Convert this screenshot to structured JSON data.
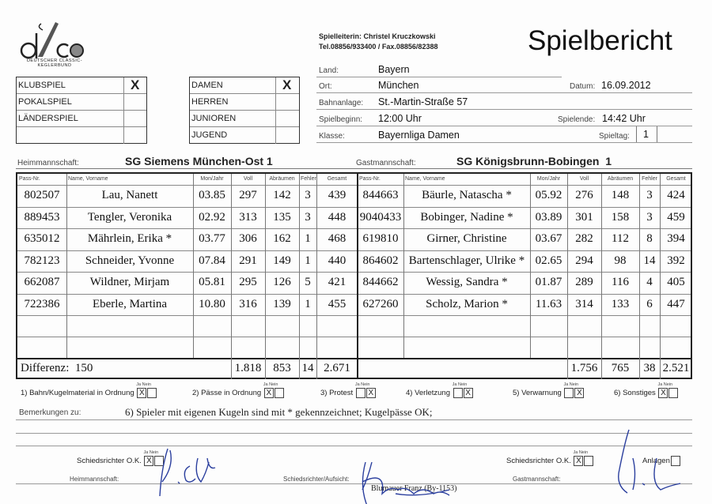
{
  "logo": {
    "text": "dkbc",
    "line1": "DEUTSCHER CLASSIC-KEGLERBUND"
  },
  "title": "Spielbericht",
  "contact": {
    "line1": "Spielleiterin:  Christel Kruczkowski",
    "line2": "Tel.08856/933400  /  Fax.08856/82388"
  },
  "game_type": [
    {
      "label": "KLUBSPIEL",
      "mark": "X"
    },
    {
      "label": "POKALSPIEL",
      "mark": ""
    },
    {
      "label": "LÄNDERSPIEL",
      "mark": ""
    },
    {
      "label": "",
      "mark": ""
    }
  ],
  "category": [
    {
      "label": "DAMEN",
      "mark": "X"
    },
    {
      "label": "HERREN",
      "mark": ""
    },
    {
      "label": "JUNIOREN",
      "mark": ""
    },
    {
      "label": "JUGEND",
      "mark": ""
    }
  ],
  "info": {
    "land_label": "Land:",
    "land": "Bayern",
    "ort_label": "Ort:",
    "ort": "München",
    "datum_label": "Datum:",
    "datum": "16.09.2012",
    "bahn_label": "Bahnanlage:",
    "bahn": "St.-Martin-Straße 57",
    "beginn_label": "Spielbeginn:",
    "beginn": "12:00 Uhr",
    "ende_label": "Spielende:",
    "ende": "14:42 Uhr",
    "klasse_label": "Klasse:",
    "klasse": "Bayernliga Damen",
    "spieltag_label": "Spieltag:",
    "spieltag": "1"
  },
  "teams": {
    "home_label": "Heimmannschaft:",
    "home": "SG Siemens München-Ost 1",
    "guest_label": "Gastmannschaft:",
    "guest": "SG Königsbrunn-Bobingen  1"
  },
  "columns": [
    "Pass-Nr.",
    "Name, Vorname",
    "Mon/Jahr",
    "Voll",
    "Abräumen",
    "Fehler",
    "Gesamt"
  ],
  "home_players": [
    [
      "802507",
      "Lau, Nanett",
      "03.85",
      "297",
      "142",
      "3",
      "439"
    ],
    [
      "889453",
      "Tengler, Veronika",
      "02.92",
      "313",
      "135",
      "3",
      "448"
    ],
    [
      "635012",
      "Mährlein, Erika *",
      "03.77",
      "306",
      "162",
      "1",
      "468"
    ],
    [
      "782123",
      "Schneider, Yvonne",
      "07.84",
      "291",
      "149",
      "1",
      "440"
    ],
    [
      "662087",
      "Wildner, Mirjam",
      "05.81",
      "295",
      "126",
      "5",
      "421"
    ],
    [
      "722386",
      "Eberle, Martina",
      "10.80",
      "316",
      "139",
      "1",
      "455"
    ]
  ],
  "guest_players": [
    [
      "844663",
      "Bäurle, Natascha *",
      "05.92",
      "276",
      "148",
      "3",
      "424"
    ],
    [
      "9040433",
      "Bobinger, Nadine *",
      "03.89",
      "301",
      "158",
      "3",
      "459"
    ],
    [
      "619810",
      "Girner, Christine",
      "03.67",
      "282",
      "112",
      "8",
      "394"
    ],
    [
      "864602",
      "Bartenschlager, Ulrike *",
      "02.65",
      "294",
      "98",
      "14",
      "392"
    ],
    [
      "844662",
      "Wessig, Sandra *",
      "01.87",
      "289",
      "116",
      "4",
      "405"
    ],
    [
      "627260",
      "Scholz, Marion *",
      "11.63",
      "314",
      "133",
      "6",
      "447"
    ]
  ],
  "totals": {
    "diff": "Differenz:  150",
    "home": [
      "1.818",
      "853",
      "14",
      "2.671"
    ],
    "guest": [
      "1.756",
      "765",
      "38",
      "2.521"
    ]
  },
  "checks": {
    "ja": "Ja",
    "nein": "Nein",
    "items": [
      {
        "label": "1) Bahn/Kugelmaterial in Ordnung",
        "ja": "X",
        "nein": ""
      },
      {
        "label": "2) Pässe in Ordnung",
        "ja": "X",
        "nein": ""
      },
      {
        "label": "3) Protest",
        "ja": "",
        "nein": "X"
      },
      {
        "label": "4) Verletzung",
        "ja": "",
        "nein": "X"
      },
      {
        "label": "5) Verwarnung",
        "ja": "",
        "nein": "X"
      },
      {
        "label": "6) Sonstiges",
        "ja": "X",
        "nein": ""
      }
    ]
  },
  "remarks": {
    "label": "Bemerkungen zu:",
    "text": "6) Spieler mit eigenen Kugeln sind mit * gekennzeichnet; Kugelpässe OK;"
  },
  "signatures": {
    "sr_ok": "Schiedsrichter O.K.",
    "home_label": "Heimmannschaft:",
    "home_sr_ja": "X",
    "home_sr_nein": "",
    "referee_label": "Schiedsrichter/Aufsicht:",
    "referee_name": "Blumauer Franz (By-1153)",
    "guest_label": "Gastmannschaft:",
    "guest_sr_ja": "X",
    "guest_sr_nein": "",
    "anlagen": "Anlagen"
  },
  "colors": {
    "ink": "#222222",
    "signature_blue": "#2b3f9e"
  }
}
